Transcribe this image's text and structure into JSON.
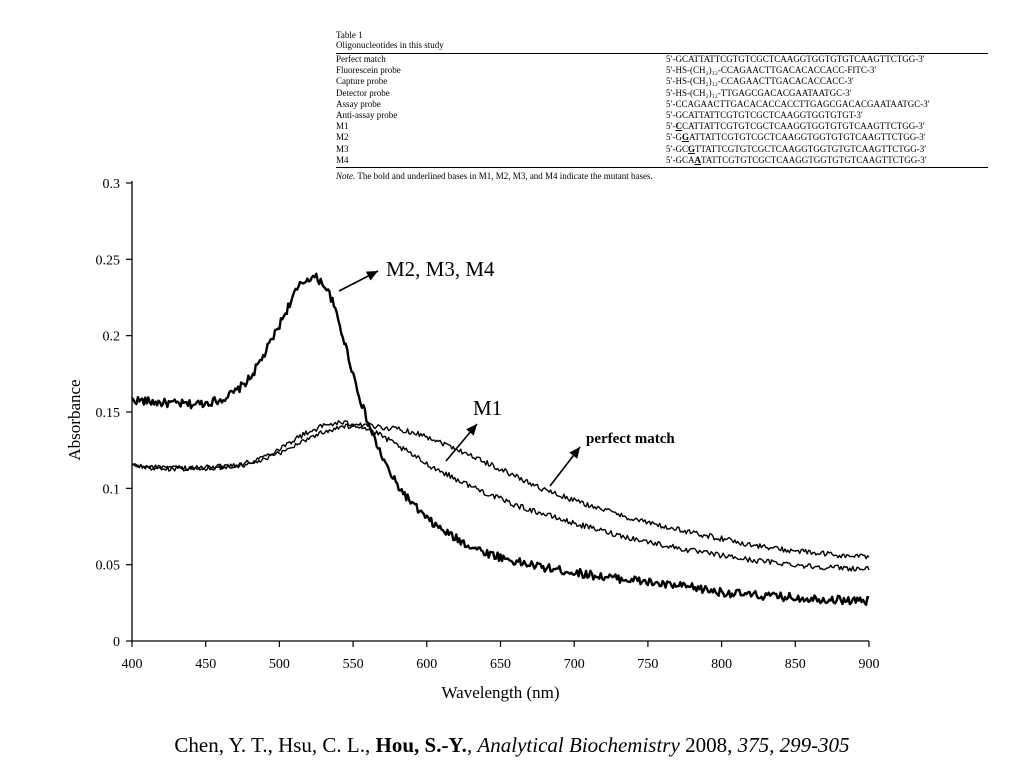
{
  "table": {
    "title": "Table 1",
    "subtitle": "Oligonucleotides in this study",
    "rows": [
      {
        "name": "Perfect match",
        "seq": [
          "5′-GCATTATTCGTGTCGCTCAAGGTGGTGTGTCAAGTTCTGG-3′"
        ]
      },
      {
        "name": "Fluorescein probe",
        "seq": [
          "5′-HS-(CH₂)₁₂-CCAGAACTTGACACACCACC-FITC-3′"
        ]
      },
      {
        "name": "Capture probe",
        "seq": [
          "5′-HS-(CH₂)₁₂-CCAGAACTTGACACACCACC-3′"
        ]
      },
      {
        "name": "Detector probe",
        "seq": [
          "5′-HS-(CH₂)₁₂-TTGAGCGACACGAATAATGC-3′"
        ]
      },
      {
        "name": "Assay probe",
        "seq": [
          "5′-CCAGAACTTGACACACCACCTTGAGCGACACGAATAATGC-3′"
        ]
      },
      {
        "name": "Anti-assay probe",
        "seq": [
          "5′-GCATTATTCGTGTCGCTCAAGGTGGTGTGT-3′"
        ]
      },
      {
        "name": "M1",
        "seq": [
          "5′-",
          "C",
          "CATTATTCGTGTCGCTCAAGGTGGTGTGTCAAGTTCTGG-3′"
        ]
      },
      {
        "name": "M2",
        "seq": [
          "5′-G",
          "G",
          "ATTATTCGTGTCGCTCAAGGTGGTGTGTCAAGTTCTGG-3′"
        ]
      },
      {
        "name": "M3",
        "seq": [
          "5′-GC",
          "G",
          "TTATTCGTGTCGCTCAAGGTGGTGTGTCAAGTTCTGG-3′"
        ]
      },
      {
        "name": "M4",
        "seq": [
          "5′-GCA",
          "A",
          "TATTCGTGTCGCTCAAGGTGGTGTGTCAAGTTCTGG-3′"
        ]
      }
    ],
    "note_label": "Note.",
    "note_text": " The bold and underlined bases in M1, M2, M3, and M4 indicate the mutant bases."
  },
  "chart_data": {
    "type": "line",
    "xlabel": "Wavelength (nm)",
    "ylabel": "Absorbance",
    "xlim": [
      400,
      900
    ],
    "ylim": [
      0,
      0.3
    ],
    "x_ticks": [
      400,
      450,
      500,
      550,
      600,
      650,
      700,
      750,
      800,
      850,
      900
    ],
    "y_ticks": [
      0,
      0.05,
      0.1,
      0.15,
      0.2,
      0.25,
      0.3
    ],
    "y_tick_labels": [
      "0",
      "0.05",
      "0.1",
      "0.15",
      "0.2",
      "0.25",
      "0.3"
    ],
    "grid": false,
    "series": [
      {
        "name": "M2, M3, M4",
        "x": [
          400,
          420,
          440,
          450,
          460,
          470,
          480,
          490,
          500,
          505,
          510,
          515,
          520,
          525,
          530,
          535,
          540,
          545,
          550,
          555,
          560,
          565,
          570,
          575,
          580,
          590,
          600,
          610,
          620,
          630,
          640,
          650,
          660,
          680,
          700,
          720,
          740,
          760,
          780,
          800,
          820,
          840,
          860,
          880,
          900
        ],
        "y": [
          0.158,
          0.156,
          0.155,
          0.156,
          0.158,
          0.163,
          0.172,
          0.188,
          0.207,
          0.217,
          0.227,
          0.234,
          0.238,
          0.238,
          0.234,
          0.225,
          0.21,
          0.193,
          0.175,
          0.158,
          0.143,
          0.131,
          0.12,
          0.11,
          0.102,
          0.09,
          0.08,
          0.073,
          0.067,
          0.062,
          0.058,
          0.055,
          0.052,
          0.048,
          0.045,
          0.042,
          0.04,
          0.037,
          0.035,
          0.032,
          0.03,
          0.029,
          0.028,
          0.027,
          0.026
        ]
      },
      {
        "name": "M1",
        "x": [
          400,
          420,
          440,
          460,
          480,
          490,
          500,
          510,
          520,
          530,
          540,
          550,
          560,
          570,
          580,
          590,
          600,
          620,
          640,
          660,
          680,
          700,
          720,
          740,
          760,
          780,
          800,
          820,
          840,
          860,
          880,
          900
        ],
        "y": [
          0.115,
          0.113,
          0.113,
          0.114,
          0.117,
          0.121,
          0.126,
          0.132,
          0.137,
          0.141,
          0.143,
          0.142,
          0.139,
          0.134,
          0.128,
          0.122,
          0.116,
          0.106,
          0.097,
          0.089,
          0.083,
          0.077,
          0.072,
          0.067,
          0.063,
          0.059,
          0.056,
          0.053,
          0.051,
          0.049,
          0.048,
          0.047
        ]
      },
      {
        "name": "perfect match",
        "x": [
          400,
          420,
          440,
          460,
          480,
          490,
          500,
          510,
          520,
          530,
          540,
          550,
          560,
          570,
          580,
          590,
          600,
          620,
          640,
          660,
          680,
          700,
          720,
          740,
          760,
          780,
          800,
          820,
          840,
          860,
          880,
          900
        ],
        "y": [
          0.115,
          0.113,
          0.113,
          0.114,
          0.116,
          0.119,
          0.123,
          0.128,
          0.133,
          0.137,
          0.14,
          0.141,
          0.141,
          0.14,
          0.139,
          0.137,
          0.134,
          0.126,
          0.117,
          0.108,
          0.099,
          0.092,
          0.086,
          0.08,
          0.075,
          0.071,
          0.067,
          0.063,
          0.06,
          0.058,
          0.056,
          0.055
        ]
      }
    ],
    "annotations": [
      {
        "text": "M2, M3, M4"
      },
      {
        "text": "M1"
      },
      {
        "text": "perfect match"
      }
    ]
  },
  "citation": {
    "authors": "Chen, Y. T., Hsu, C. L., ",
    "highlight_author": "Hou, S.-Y.",
    "sep": ", ",
    "journal": "Analytical Biochemistry",
    "year": " 2008, ",
    "volume_pages": "375, 299-305"
  }
}
